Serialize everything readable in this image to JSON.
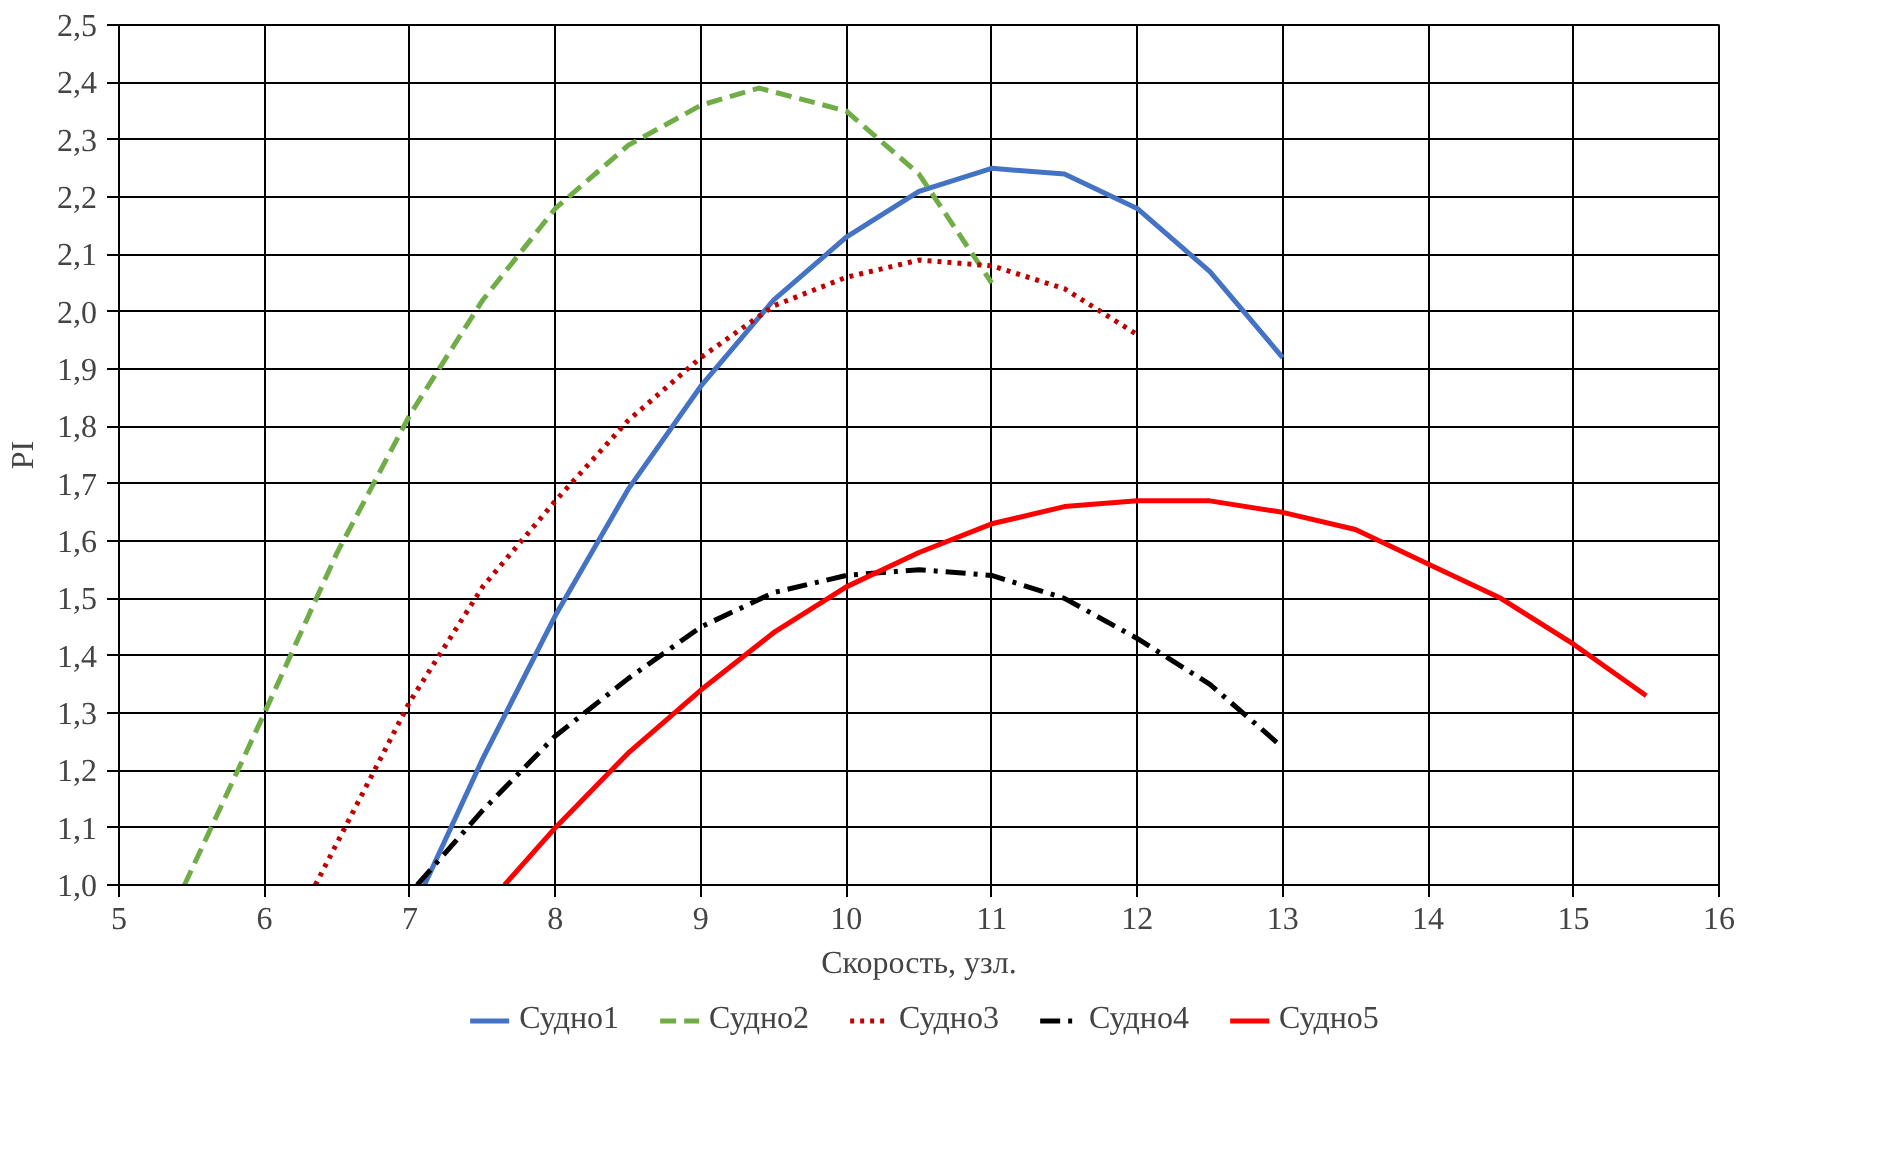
{
  "chart_data": {
    "type": "line",
    "xlabel": "Скорость, узл.",
    "ylabel": "PI",
    "xlim": [
      5,
      16
    ],
    "xticks": [
      5,
      6,
      7,
      8,
      9,
      10,
      11,
      12,
      13,
      14,
      15,
      16
    ],
    "ylim": [
      1.0,
      2.5
    ],
    "yticks": [
      {
        "value": 1.0,
        "label": "1,0"
      },
      {
        "value": 1.1,
        "label": "1,1"
      },
      {
        "value": 1.2,
        "label": "1,2"
      },
      {
        "value": 1.3,
        "label": "1,3"
      },
      {
        "value": 1.4,
        "label": "1,4"
      },
      {
        "value": 1.5,
        "label": "1,5"
      },
      {
        "value": 1.6,
        "label": "1,6"
      },
      {
        "value": 1.7,
        "label": "1,7"
      },
      {
        "value": 1.8,
        "label": "1,8"
      },
      {
        "value": 1.9,
        "label": "1,9"
      },
      {
        "value": 2.0,
        "label": "2,0"
      },
      {
        "value": 2.1,
        "label": "2,1"
      },
      {
        "value": 2.2,
        "label": "2,2"
      },
      {
        "value": 2.3,
        "label": "2,3"
      },
      {
        "value": 2.4,
        "label": "2,4"
      },
      {
        "value": 2.5,
        "label": "2,5"
      }
    ],
    "grid": true,
    "legend": "bottom",
    "marker": "none",
    "series": [
      {
        "name": "Судно1",
        "color": "#4472c4",
        "line_style": "solid",
        "x": [
          7.1,
          7.5,
          8,
          8.5,
          9,
          9.5,
          10,
          10.5,
          11,
          11.5,
          12,
          12.5,
          13
        ],
        "values": [
          1.0,
          1.22,
          1.47,
          1.69,
          1.87,
          2.02,
          2.13,
          2.21,
          2.25,
          2.24,
          2.18,
          2.07,
          1.92
        ]
      },
      {
        "name": "Судно2",
        "color": "#70ad47",
        "line_style": "dashed",
        "x": [
          5.45,
          6,
          6.5,
          7,
          7.5,
          8,
          8.5,
          9,
          9.4,
          10,
          10.5,
          11
        ],
        "values": [
          1.0,
          1.3,
          1.58,
          1.82,
          2.02,
          2.18,
          2.29,
          2.36,
          2.39,
          2.35,
          2.24,
          2.05
        ]
      },
      {
        "name": "Судно3",
        "color": "#c00000",
        "line_style": "dotted",
        "x": [
          6.35,
          7,
          7.5,
          8,
          8.5,
          9,
          9.5,
          10,
          10.5,
          11,
          11.5,
          12
        ],
        "values": [
          1.0,
          1.32,
          1.52,
          1.67,
          1.81,
          1.92,
          2.01,
          2.06,
          2.09,
          2.08,
          2.04,
          1.96
        ]
      },
      {
        "name": "Судно4",
        "color": "#000000",
        "line_style": "dashdot",
        "x": [
          7.05,
          7.5,
          8,
          8.5,
          9,
          9.5,
          10,
          10.5,
          11,
          11.5,
          12,
          12.5,
          13
        ],
        "values": [
          1.0,
          1.13,
          1.26,
          1.36,
          1.45,
          1.51,
          1.54,
          1.55,
          1.54,
          1.5,
          1.43,
          1.35,
          1.24
        ]
      },
      {
        "name": "Судно5",
        "color": "#ff0000",
        "line_style": "solid",
        "x": [
          7.65,
          8,
          8.5,
          9,
          9.5,
          10,
          10.5,
          11,
          11.5,
          12,
          12.5,
          13,
          13.5,
          14,
          14.5,
          15,
          15.5
        ],
        "values": [
          1.0,
          1.1,
          1.23,
          1.34,
          1.44,
          1.52,
          1.58,
          1.63,
          1.66,
          1.67,
          1.67,
          1.65,
          1.62,
          1.56,
          1.5,
          1.42,
          1.33
        ]
      }
    ]
  }
}
